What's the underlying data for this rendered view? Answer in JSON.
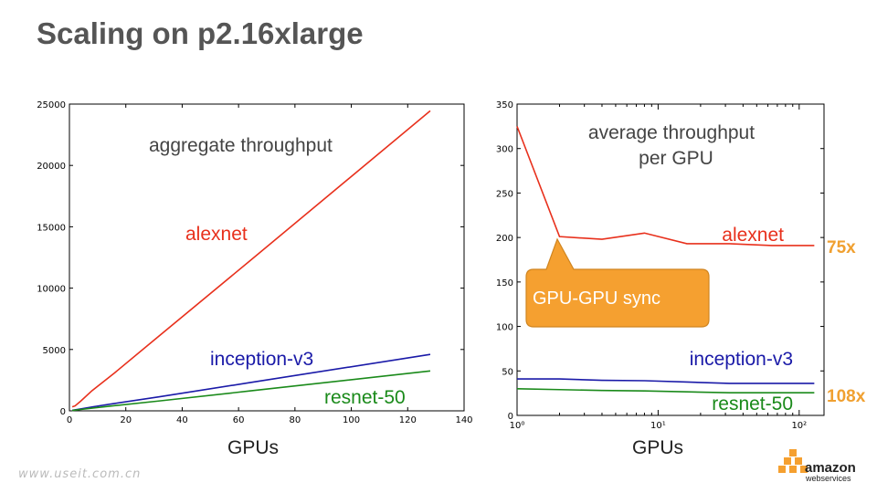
{
  "slide": {
    "title": "Scaling on p2.16xlarge",
    "watermark": "www.useit.com.cn",
    "logo": {
      "line1": "amazon",
      "line2": "webservices"
    }
  },
  "colors": {
    "alexnet": "#e8301c",
    "inception": "#1a1aa8",
    "resnet": "#1a8a1a",
    "callout": "#f5a030",
    "ratio": "#f0a030"
  },
  "chart_data": [
    {
      "type": "line",
      "annotation": "aggregate throughput",
      "xlabel": "GPUs",
      "xlim": [
        0,
        140
      ],
      "ylim": [
        0,
        25000
      ],
      "xticks": [
        0,
        20,
        40,
        60,
        80,
        100,
        120,
        140
      ],
      "yticks": [
        0,
        5000,
        10000,
        15000,
        20000,
        25000
      ],
      "series": [
        {
          "name": "alexnet",
          "x": [
            1,
            2,
            4,
            8,
            16,
            32,
            64,
            128
          ],
          "y": [
            325,
            402,
            790,
            1640,
            3090,
            6140,
            12220,
            24450
          ]
        },
        {
          "name": "inception-v3",
          "x": [
            1,
            2,
            4,
            8,
            16,
            32,
            64,
            128
          ],
          "y": [
            41,
            82,
            158,
            315,
            600,
            1150,
            2300,
            4600
          ]
        },
        {
          "name": "resnet-50",
          "x": [
            1,
            2,
            4,
            8,
            16,
            32,
            64,
            128
          ],
          "y": [
            30,
            58,
            112,
            218,
            420,
            810,
            1620,
            3250
          ]
        }
      ]
    },
    {
      "type": "line",
      "annotation": "average throughput\nper GPU",
      "xlabel": "GPUs",
      "xscale": "log",
      "xlim": [
        1,
        150
      ],
      "ylim": [
        0,
        350
      ],
      "xticks": [
        1,
        10,
        100
      ],
      "xticklabels": [
        "10⁰",
        "10¹",
        "10²"
      ],
      "yticks": [
        0,
        50,
        100,
        150,
        200,
        250,
        300,
        350
      ],
      "series": [
        {
          "name": "alexnet",
          "x": [
            1,
            2,
            4,
            8,
            16,
            32,
            64,
            128
          ],
          "y": [
            325,
            201,
            198,
            205,
            193,
            193,
            191,
            191
          ]
        },
        {
          "name": "inception-v3",
          "x": [
            1,
            2,
            4,
            8,
            16,
            32,
            64,
            128
          ],
          "y": [
            41,
            41,
            39.5,
            39,
            37.5,
            36,
            36,
            36
          ]
        },
        {
          "name": "resnet-50",
          "x": [
            1,
            2,
            4,
            8,
            16,
            32,
            64,
            128
          ],
          "y": [
            30,
            29,
            28,
            27.5,
            26.5,
            25.5,
            25.5,
            25.5
          ]
        }
      ],
      "callout": "GPU-GPU sync",
      "ratios": [
        {
          "series": "alexnet",
          "label": "75x"
        },
        {
          "series": "resnet-50",
          "label": "108x"
        }
      ]
    }
  ]
}
